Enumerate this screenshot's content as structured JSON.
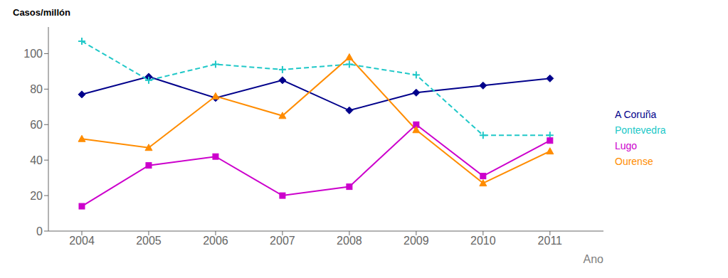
{
  "chart_data": {
    "type": "line",
    "x": [
      2004,
      2005,
      2006,
      2007,
      2008,
      2009,
      2010,
      2011
    ],
    "series": [
      {
        "name": "A Coruña",
        "color": "#00008B",
        "marker": "diamond",
        "line_style": "solid",
        "values": [
          77,
          87,
          75,
          85,
          68,
          78,
          82,
          86
        ]
      },
      {
        "name": "Pontevedra",
        "color": "#20C8C8",
        "marker": "plus",
        "line_style": "dashed",
        "values": [
          107,
          85,
          94,
          91,
          94,
          88,
          54,
          54
        ]
      },
      {
        "name": "Lugo",
        "color": "#CC00CC",
        "marker": "square",
        "line_style": "solid",
        "values": [
          14,
          37,
          42,
          20,
          25,
          60,
          31,
          51
        ]
      },
      {
        "name": "Ourense",
        "color": "#FF8C00",
        "marker": "triangle",
        "line_style": "solid",
        "values": [
          52,
          47,
          76,
          65,
          98,
          57,
          27,
          45
        ]
      }
    ],
    "xlabel": "Ano",
    "ylabel": "Casos/millón",
    "xlim": [
      2003.5,
      2011.8
    ],
    "xticks": [
      2004,
      2005,
      2006,
      2007,
      2008,
      2009,
      2010,
      2011
    ],
    "ylim": [
      0,
      115
    ],
    "yticks": [
      0,
      20,
      40,
      60,
      80,
      100
    ],
    "grid": false,
    "legend": "right"
  }
}
